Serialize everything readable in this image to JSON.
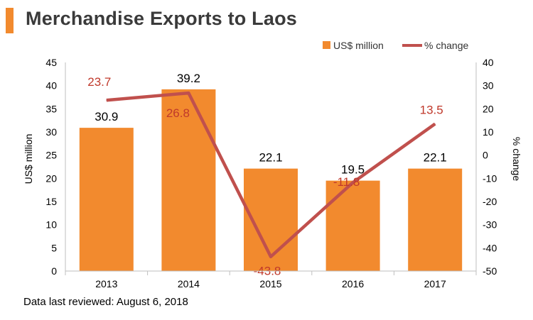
{
  "title": "Merchandise Exports to Laos",
  "footer": "Data last reviewed: August 6, 2018",
  "colors": {
    "bar": "#f28a2e",
    "line": "#c0504d",
    "line_label": "#c0392b",
    "accent": "#f28a2e"
  },
  "chart_data": {
    "type": "bar+line",
    "title": "Merchandise Exports to Laos",
    "categories": [
      "2013",
      "2014",
      "2015",
      "2016",
      "2017"
    ],
    "series": [
      {
        "name": "US$ million",
        "type": "bar",
        "axis": "left",
        "values": [
          30.9,
          39.2,
          22.1,
          19.5,
          22.1
        ],
        "labels": [
          "30.9",
          "39.2",
          "22.1",
          "19.5",
          "22.1"
        ]
      },
      {
        "name": "% change",
        "type": "line",
        "axis": "right",
        "values": [
          23.7,
          26.8,
          -43.8,
          -11.8,
          13.5
        ],
        "labels": [
          "23.7",
          "26.8",
          "-43.8",
          "-11.8",
          "13.5"
        ]
      }
    ],
    "ylabel_left": "US$ million",
    "ylabel_right": "% change",
    "ylim_left": [
      0,
      45
    ],
    "ylim_right": [
      -50,
      40
    ],
    "yticks_left": [
      "0",
      "5",
      "10",
      "15",
      "20",
      "25",
      "30",
      "35",
      "40",
      "45"
    ],
    "yticks_right": [
      "-50",
      "-40",
      "-30",
      "-20",
      "-10",
      "0",
      "10",
      "20",
      "30",
      "40"
    ],
    "legend": [
      "US$ million",
      "% change"
    ],
    "legend_position": "top-right",
    "grid": false
  }
}
